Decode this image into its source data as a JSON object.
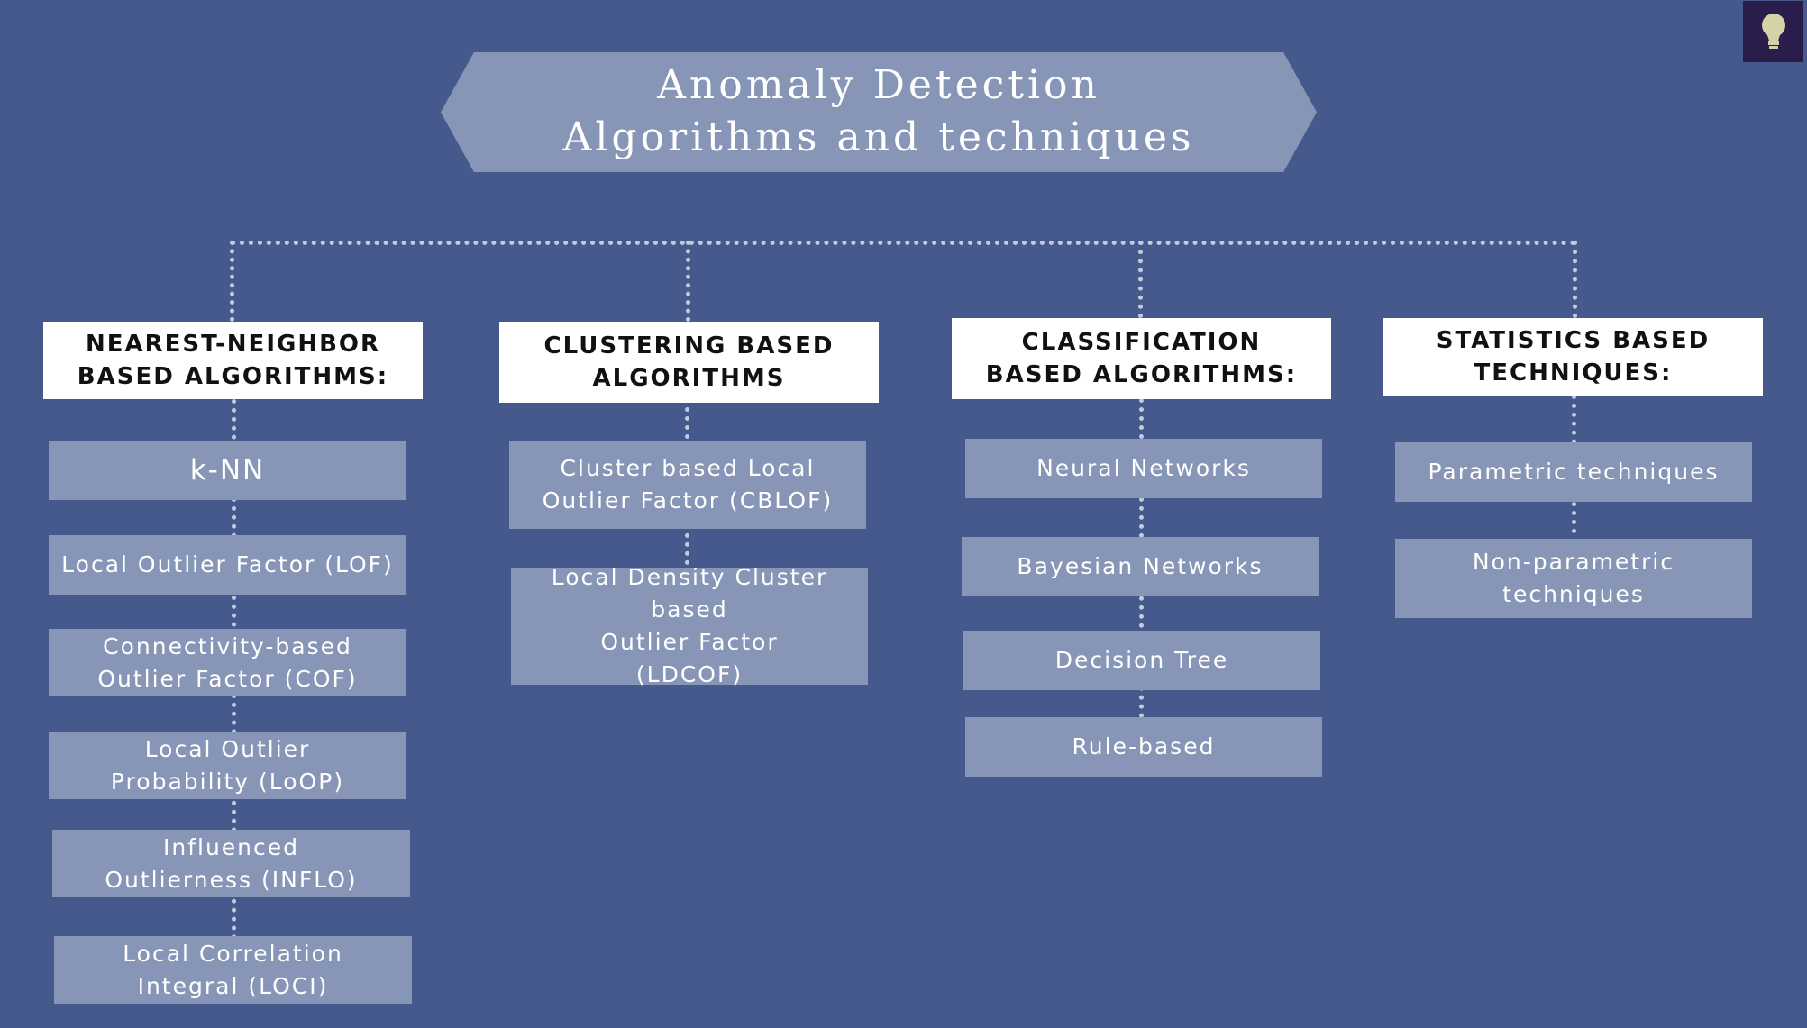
{
  "title": {
    "line1": "Anomaly Detection",
    "line2": "Algorithms and techniques"
  },
  "icon": {
    "name": "lightbulb-icon",
    "bg": "#2a1d4c",
    "color": "#d6d2a8"
  },
  "colors": {
    "background": "#45598c",
    "item": "#8796b6",
    "header": "#ffffff",
    "connector": "#c3cada"
  },
  "columns": [
    {
      "header": "NEAREST-NEIGHBOR\nBASED ALGORITHMS:",
      "items": [
        "k-NN",
        "Local Outlier Factor (LOF)",
        "Connectivity-based\nOutlier Factor (COF)",
        "Local Outlier\nProbability (LoOP)",
        "Influenced\nOutlierness (INFLO)",
        "Local Correlation\nIntegral (LOCI)"
      ]
    },
    {
      "header": "CLUSTERING BASED\nALGORITHMS",
      "items": [
        "Cluster based Local\nOutlier Factor (CBLOF)",
        "Local Density Cluster based\nOutlier Factor\n(LDCOF)"
      ]
    },
    {
      "header": "CLASSIFICATION\nBASED ALGORITHMS:",
      "items": [
        "Neural Networks",
        "Bayesian Networks",
        "Decision Tree",
        "Rule-based"
      ]
    },
    {
      "header": "STATISTICS BASED\nTECHNIQUES:",
      "items": [
        "Parametric techniques",
        "Non-parametric\ntechniques"
      ]
    }
  ]
}
